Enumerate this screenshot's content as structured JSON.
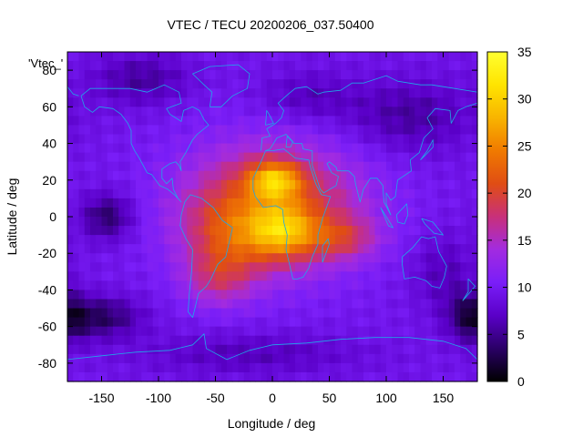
{
  "chart_data": {
    "type": "heatmap",
    "title": "VTEC / TECU 20200206_037.50400",
    "xlabel": "Longitude / deg",
    "ylabel": "Latitude / deg",
    "xlim": [
      -180,
      180
    ],
    "ylim": [
      -90,
      90
    ],
    "x_ticks": [
      -150,
      -100,
      -50,
      0,
      50,
      100,
      150
    ],
    "y_ticks": [
      -80,
      -60,
      -40,
      -20,
      0,
      20,
      40,
      60,
      80
    ],
    "legend_label": "'Vtec_'",
    "colorbar": {
      "min": 0,
      "max": 35,
      "ticks": [
        0,
        5,
        10,
        15,
        20,
        25,
        30,
        35
      ],
      "palette": [
        "#000000",
        "#2a0066",
        "#5a00c8",
        "#7a1ef8",
        "#a22be0",
        "#c8307a",
        "#e04d14",
        "#f07a00",
        "#f8b400",
        "#ffe400",
        "#ffff30"
      ]
    },
    "grid": false,
    "vtec_field": {
      "background": 9.5,
      "features": [
        {
          "lon": 0,
          "lat": 5,
          "slon": 55,
          "slat": 24,
          "amp": 12
        },
        {
          "lon": 2,
          "lat": 20,
          "slon": 16,
          "slat": 7,
          "amp": 12
        },
        {
          "lon": 8,
          "lat": -8,
          "slon": 20,
          "slat": 10,
          "amp": 11
        },
        {
          "lon": 60,
          "lat": -12,
          "slon": 22,
          "slat": 8,
          "amp": 6
        },
        {
          "lon": -40,
          "lat": -15,
          "slon": 25,
          "slat": 18,
          "amp": 6
        },
        {
          "lon": -50,
          "lat": -35,
          "slon": 20,
          "slat": 10,
          "amp": 4
        },
        {
          "lon": -145,
          "lat": 0,
          "slon": 16,
          "slat": 9,
          "amp": -6
        },
        {
          "lon": -150,
          "lat": -55,
          "slon": 25,
          "slat": 8,
          "amp": -6
        },
        {
          "lon": 175,
          "lat": -55,
          "slon": 15,
          "slat": 10,
          "amp": -6
        },
        {
          "lon": -115,
          "lat": 75,
          "slon": 30,
          "slat": 10,
          "amp": -4
        },
        {
          "lon": 120,
          "lat": 55,
          "slon": 40,
          "slat": 14,
          "amp": -4
        },
        {
          "lon": 30,
          "lat": 65,
          "slon": 30,
          "slat": 10,
          "amp": -3
        },
        {
          "lon": -20,
          "lat": -75,
          "slon": 70,
          "slat": 8,
          "amp": -3
        },
        {
          "lon": 150,
          "lat": -30,
          "slon": 20,
          "slat": 15,
          "amp": -3
        }
      ]
    }
  }
}
